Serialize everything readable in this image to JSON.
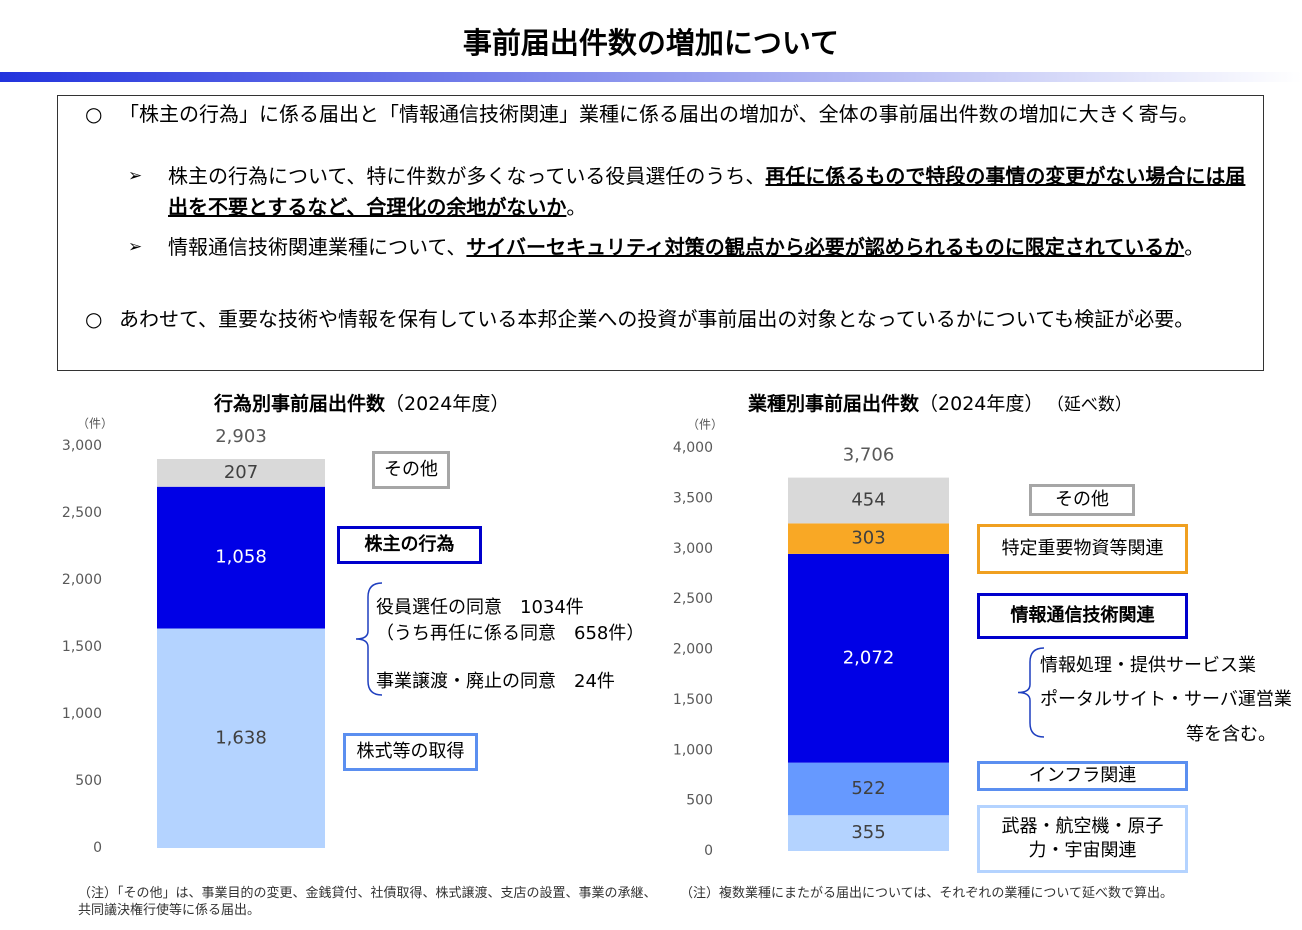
{
  "title": "事前届出件数の増加について",
  "summary": [
    {
      "marker": "○",
      "text": "「株主の行為」に係る届出と「情報通信技術関連」業種に係る届出の増加が、全体の事前届出件数の増加に大きく寄与。"
    },
    {
      "marker": "➢",
      "text": "株主の行為について、特に件数が多くなっている役員選任のうち、",
      "emphasis": "再任に係るもので特段の事情の変更がない場合には届出を不要とするなど、合理化の余地がないか",
      "end": "。"
    },
    {
      "marker": "➢",
      "text": "情報通信技術関連業種について、",
      "emphasis": "サイバーセキュリティ対策の観点から必要が認められるものに限定されているか",
      "end": "。"
    },
    {
      "marker": "○",
      "text": "あわせて、重要な技術や情報を保有している本邦企業への投資が事前届出の対象となっているかについても検証が必要。"
    }
  ],
  "chart_data": [
    {
      "type": "stacked_bar",
      "title": "行為別事前届出件数",
      "title_suffix": "（2024年度）",
      "unit": "（件）",
      "ylim": [
        0,
        3000
      ],
      "yticks": [
        0,
        500,
        {
          "value": 1000,
          "label": "1,000"
        },
        {
          "value": 1500,
          "label": "1,500"
        },
        {
          "value": 2000,
          "label": "2,000"
        },
        {
          "value": 2500,
          "label": "2,500"
        },
        {
          "value": 3000,
          "label": "3,000"
        }
      ],
      "total": {
        "value": 2903,
        "label": "2,903"
      },
      "series": [
        {
          "name": "株式等の取得",
          "color": "#b4d3ff",
          "legend_color": "#5b8ff0",
          "label_color": "#404040",
          "values": [
            1638
          ],
          "value_labels": [
            "1,638"
          ]
        },
        {
          "name": "株主の行為",
          "color": "#0000e6",
          "legend_color": "#0000cc",
          "label_color": "#ffffff",
          "values": [
            1058
          ],
          "value_labels": [
            "1,058"
          ]
        },
        {
          "name": "その他",
          "color": "#d9d9d9",
          "legend_color": "#a6a6a6",
          "label_color": "#404040",
          "values": [
            207
          ]
        }
      ],
      "annotation": [
        "役員選任の同意　1034件",
        "（うち再任に係る同意　658件）",
        "事業譲渡・廃止の同意　24件"
      ],
      "note": "（注）「その他」は、事業目的の変更、金銭貸付、社債取得、株式譲渡、支店の設置、事業の承継、共同議決権行使等に係る届出。"
    },
    {
      "type": "stacked_bar",
      "title": "業種別事前届出件数",
      "title_suffix": "（2024年度）",
      "title_extra": "（延べ数）",
      "unit": "（件）",
      "ylim": [
        0,
        4000
      ],
      "yticks": [
        0,
        500,
        {
          "value": 1000,
          "label": "1,000"
        },
        {
          "value": 1500,
          "label": "1,500"
        },
        {
          "value": 2000,
          "label": "2,000"
        },
        {
          "value": 2500,
          "label": "2,500"
        },
        {
          "value": 3000,
          "label": "3,000"
        },
        {
          "value": 3500,
          "label": "3,500"
        },
        {
          "value": 4000,
          "label": "4,000"
        }
      ],
      "total": {
        "value": 3706,
        "label": "3,706"
      },
      "series": [
        {
          "name": "武器・航空機・原子力・宇宙関連",
          "color": "#b4d3ff",
          "legend_color": "#b4d3ff",
          "label_color": "#404040",
          "values": [
            355
          ]
        },
        {
          "name": "インフラ関連",
          "color": "#6699ff",
          "legend_color": "#5b8ff0",
          "label_color": "#404040",
          "values": [
            522
          ]
        },
        {
          "name": "情報通信技術関連",
          "color": "#0000e6",
          "legend_color": "#0000cc",
          "label_color": "#ffffff",
          "values": [
            2072
          ],
          "value_labels": [
            "2,072"
          ]
        },
        {
          "name": "特定重要物資等関連",
          "color": "#f9a825",
          "legend_color": "#f0a020",
          "label_color": "#404040",
          "values": [
            303
          ]
        },
        {
          "name": "その他",
          "color": "#d9d9d9",
          "legend_color": "#a6a6a6",
          "label_color": "#404040",
          "values": [
            454
          ]
        }
      ],
      "annotation": [
        "情報処理・提供サービス業",
        "ポータルサイト・サーバ運営業",
        "等を含む。"
      ],
      "note": "（注）複数業種にまたがる届出については、それぞれの業種について延べ数で算出。"
    }
  ]
}
